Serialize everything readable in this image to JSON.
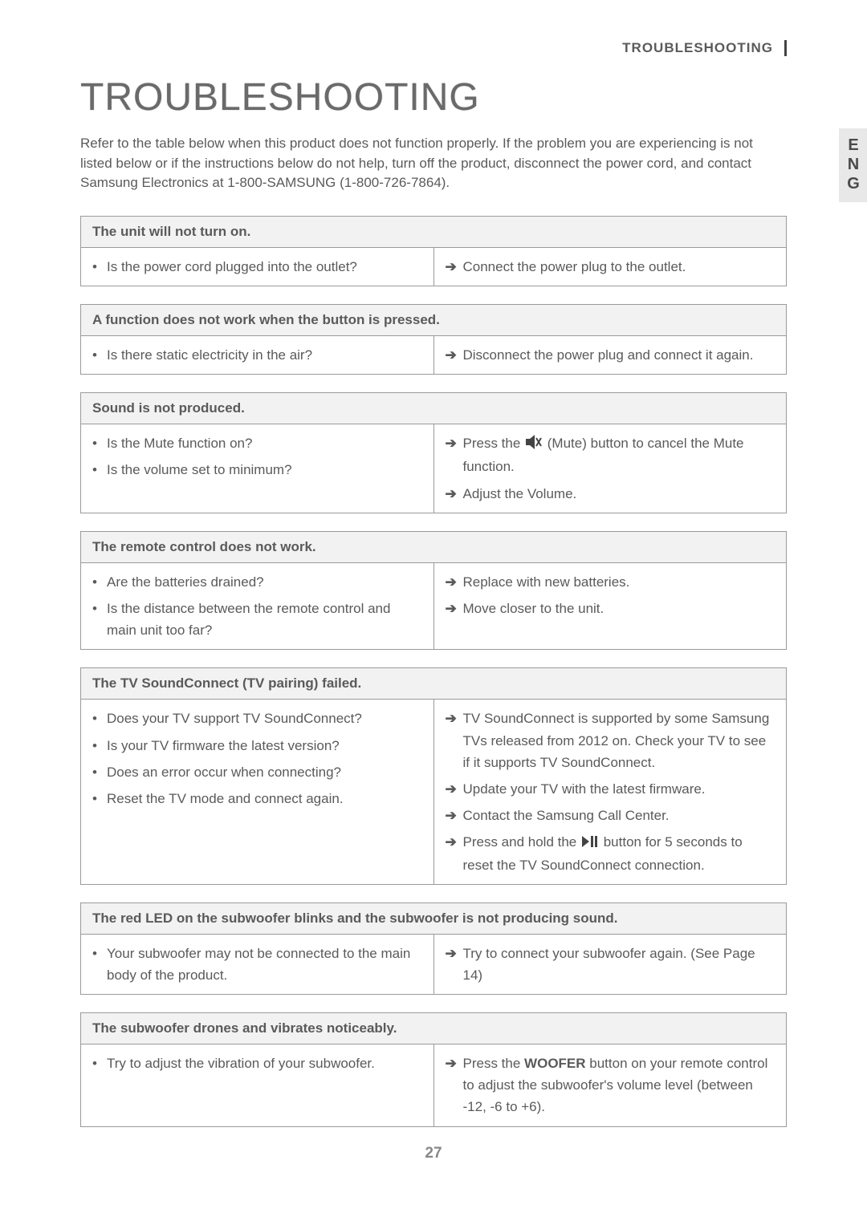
{
  "side_tab": "ENG",
  "header_label": "TROUBLESHOOTING",
  "title": "TROUBLESHOOTING",
  "intro": "Refer to the table below when this product does not function properly. If the problem you are experiencing is not listed below or if the instructions below do not help, turn off the product, disconnect the power cord, and contact Samsung Electronics at 1-800-SAMSUNG (1-800-726-7864).",
  "sections": [
    {
      "heading": "The unit will not turn on.",
      "questions": [
        "Is the power cord plugged into the outlet?"
      ],
      "answers": [
        {
          "text": "Connect the power plug to the outlet."
        }
      ]
    },
    {
      "heading": "A function does not work when the button is pressed.",
      "questions": [
        "Is there static electricity in the air?"
      ],
      "answers": [
        {
          "text": "Disconnect the power plug and connect it again."
        }
      ]
    },
    {
      "heading": "Sound is not produced.",
      "questions": [
        "Is the Mute function on?",
        "Is the volume set to minimum?"
      ],
      "answers": [
        {
          "pre": "Press the ",
          "icon": "mute",
          "post": " (Mute) button to cancel the Mute function."
        },
        {
          "text": "Adjust the Volume."
        }
      ]
    },
    {
      "heading": "The remote control does not work.",
      "questions": [
        "Are the batteries drained?",
        "Is the distance between the remote control and main unit too far?"
      ],
      "answers": [
        {
          "text": "Replace with new batteries."
        },
        {
          "text": "Move closer to the unit."
        }
      ]
    },
    {
      "heading": "The TV SoundConnect (TV pairing) failed.",
      "questions": [
        "Does your TV support TV SoundConnect?",
        "Is your TV firmware the latest version?",
        "Does an error occur when connecting?",
        "Reset the TV mode and connect again."
      ],
      "answers": [
        {
          "text": "TV SoundConnect is supported by some Samsung TVs released from 2012 on. Check your TV to see if it supports TV SoundConnect."
        },
        {
          "text": "Update your TV with the latest firmware."
        },
        {
          "text": "Contact the Samsung Call Center."
        },
        {
          "pre": "Press and hold the ",
          "icon": "playpause",
          "post": " button for 5 seconds to reset the TV SoundConnect connection."
        }
      ]
    },
    {
      "heading": "The red LED on the subwoofer blinks and the subwoofer is not producing sound.",
      "questions": [
        "Your subwoofer may not be connected to the main body of the product."
      ],
      "answers": [
        {
          "text": "Try to connect your subwoofer again. (See Page 14)"
        }
      ]
    },
    {
      "heading": "The subwoofer drones and vibrates noticeably.",
      "questions": [
        "Try to adjust the vibration of your subwoofer."
      ],
      "answers": [
        {
          "pre": "Press the ",
          "strong": "WOOFER",
          "post": " button on your remote control to adjust the subwoofer's volume level (between -12, -6 to +6)."
        }
      ]
    }
  ],
  "page_number": "27"
}
